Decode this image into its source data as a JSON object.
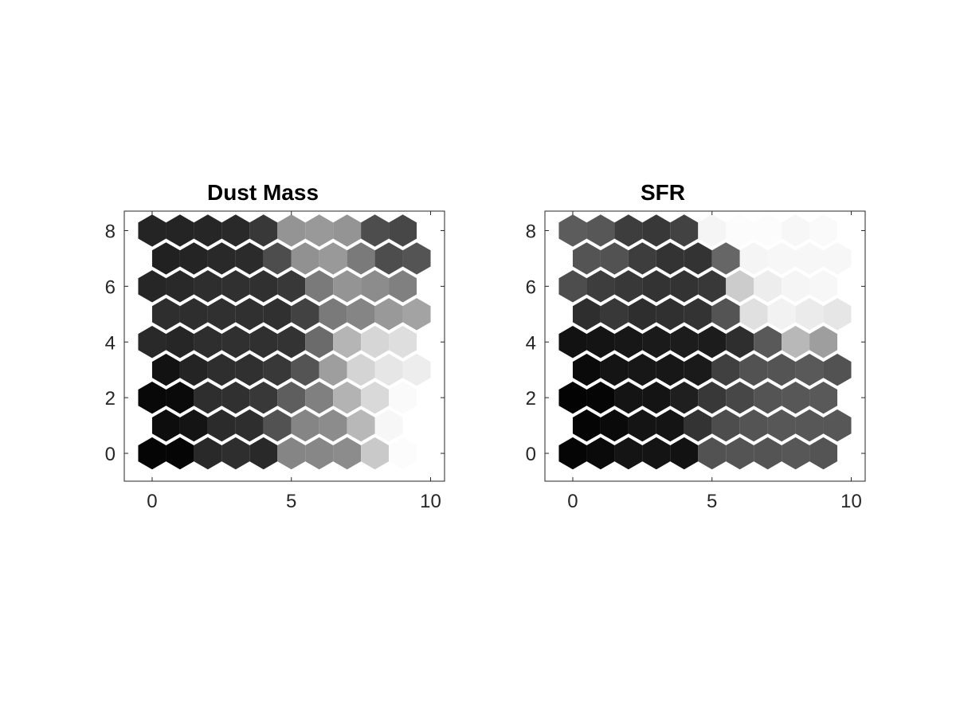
{
  "chart_data": [
    {
      "type": "heatmap",
      "title": "Dust Mass",
      "xlabel": "",
      "ylabel": "",
      "xlim": [
        -1,
        10.5
      ],
      "ylim": [
        -1,
        8.7
      ],
      "xticks": [
        0,
        5,
        10
      ],
      "yticks": [
        0,
        2,
        4,
        6,
        8
      ],
      "grid": false,
      "colormap": "gray",
      "rows": [
        {
          "y": 0,
          "x": [
            0,
            1,
            2,
            3,
            4,
            5,
            6,
            7,
            8,
            9
          ],
          "values": [
            0.02,
            0.02,
            0.16,
            0.18,
            0.16,
            0.52,
            0.53,
            0.55,
            0.79,
            0.99
          ]
        },
        {
          "y": 1,
          "x": [
            0.5,
            1.5,
            2.5,
            3.5,
            4.5,
            5.5,
            6.5,
            7.5,
            8.5,
            9.5
          ],
          "values": [
            0.05,
            0.08,
            0.17,
            0.18,
            0.32,
            0.52,
            0.55,
            0.72,
            0.97,
            1.0
          ]
        },
        {
          "y": 2,
          "x": [
            0,
            1,
            2,
            3,
            4,
            5,
            6,
            7,
            8,
            9
          ],
          "values": [
            0.03,
            0.04,
            0.18,
            0.19,
            0.22,
            0.37,
            0.5,
            0.7,
            0.85,
            0.98
          ]
        },
        {
          "y": 3,
          "x": [
            0.5,
            1.5,
            2.5,
            3.5,
            4.5,
            5.5,
            6.5,
            7.5,
            8.5,
            9.5
          ],
          "values": [
            0.07,
            0.14,
            0.18,
            0.19,
            0.22,
            0.33,
            0.62,
            0.83,
            0.9,
            0.93
          ]
        },
        {
          "y": 4,
          "x": [
            0,
            1,
            2,
            3,
            4,
            5,
            6,
            7,
            8,
            9
          ],
          "values": [
            0.16,
            0.15,
            0.18,
            0.19,
            0.19,
            0.2,
            0.42,
            0.71,
            0.84,
            0.87
          ]
        },
        {
          "y": 5,
          "x": [
            0.5,
            1.5,
            2.5,
            3.5,
            4.5,
            5.5,
            6.5,
            7.5,
            8.5,
            9.5
          ],
          "values": [
            0.18,
            0.18,
            0.19,
            0.19,
            0.19,
            0.26,
            0.48,
            0.52,
            0.6,
            0.64
          ]
        },
        {
          "y": 6,
          "x": [
            0,
            1,
            2,
            3,
            4,
            5,
            6,
            7,
            8,
            9
          ],
          "values": [
            0.15,
            0.16,
            0.18,
            0.19,
            0.19,
            0.22,
            0.48,
            0.58,
            0.55,
            0.5
          ]
        },
        {
          "y": 7,
          "x": [
            0.5,
            1.5,
            2.5,
            3.5,
            4.5,
            5.5,
            6.5,
            7.5,
            8.5,
            9.5
          ],
          "values": [
            0.13,
            0.14,
            0.16,
            0.17,
            0.3,
            0.57,
            0.6,
            0.48,
            0.3,
            0.33
          ]
        },
        {
          "y": 8,
          "x": [
            0,
            1,
            2,
            3,
            4,
            5,
            6,
            7,
            8,
            9
          ],
          "values": [
            0.14,
            0.14,
            0.15,
            0.16,
            0.22,
            0.58,
            0.6,
            0.58,
            0.3,
            0.28
          ]
        }
      ]
    },
    {
      "type": "heatmap",
      "title": "SFR",
      "xlabel": "",
      "ylabel": "",
      "xlim": [
        -1,
        10.5
      ],
      "ylim": [
        -1,
        8.7
      ],
      "xticks": [
        0,
        5,
        10
      ],
      "yticks": [
        0,
        2,
        4,
        6,
        8
      ],
      "grid": false,
      "colormap": "gray",
      "rows": [
        {
          "y": 0,
          "x": [
            0,
            1,
            2,
            3,
            4,
            5,
            6,
            7,
            8,
            9
          ],
          "values": [
            0.02,
            0.04,
            0.08,
            0.08,
            0.07,
            0.32,
            0.33,
            0.33,
            0.34,
            0.33
          ]
        },
        {
          "y": 1,
          "x": [
            0.5,
            1.5,
            2.5,
            3.5,
            4.5,
            5.5,
            6.5,
            7.5,
            8.5,
            9.5
          ],
          "values": [
            0.02,
            0.04,
            0.08,
            0.08,
            0.2,
            0.3,
            0.33,
            0.34,
            0.34,
            0.34
          ]
        },
        {
          "y": 2,
          "x": [
            0,
            1,
            2,
            3,
            4,
            5,
            6,
            7,
            8,
            9
          ],
          "values": [
            0.01,
            0.02,
            0.08,
            0.08,
            0.12,
            0.22,
            0.28,
            0.33,
            0.34,
            0.35
          ]
        },
        {
          "y": 3,
          "x": [
            0.5,
            1.5,
            2.5,
            3.5,
            4.5,
            5.5,
            6.5,
            7.5,
            8.5,
            9.5
          ],
          "values": [
            0.04,
            0.08,
            0.09,
            0.09,
            0.1,
            0.25,
            0.32,
            0.33,
            0.35,
            0.32
          ]
        },
        {
          "y": 4,
          "x": [
            0,
            1,
            2,
            3,
            4,
            5,
            6,
            7,
            8,
            9
          ],
          "values": [
            0.07,
            0.08,
            0.09,
            0.1,
            0.11,
            0.11,
            0.18,
            0.35,
            0.72,
            0.62
          ]
        },
        {
          "y": 5,
          "x": [
            0.5,
            1.5,
            2.5,
            3.5,
            4.5,
            5.5,
            6.5,
            7.5,
            8.5,
            9.5
          ],
          "values": [
            0.18,
            0.22,
            0.18,
            0.19,
            0.2,
            0.33,
            0.88,
            0.95,
            0.92,
            0.9
          ]
        },
        {
          "y": 6,
          "x": [
            0,
            1,
            2,
            3,
            4,
            5,
            6,
            7,
            8,
            9
          ],
          "values": [
            0.3,
            0.24,
            0.22,
            0.2,
            0.2,
            0.22,
            0.8,
            0.93,
            0.96,
            0.97
          ]
        },
        {
          "y": 7,
          "x": [
            0.5,
            1.5,
            2.5,
            3.5,
            4.5,
            5.5,
            6.5,
            7.5,
            8.5,
            9.5
          ],
          "values": [
            0.33,
            0.32,
            0.24,
            0.2,
            0.2,
            0.4,
            0.96,
            0.97,
            0.97,
            0.97
          ]
        },
        {
          "y": 8,
          "x": [
            0,
            1,
            2,
            3,
            4,
            5,
            6,
            7,
            8,
            9
          ],
          "values": [
            0.36,
            0.34,
            0.24,
            0.22,
            0.26,
            0.96,
            0.99,
            0.99,
            0.97,
            0.98
          ]
        }
      ]
    }
  ]
}
